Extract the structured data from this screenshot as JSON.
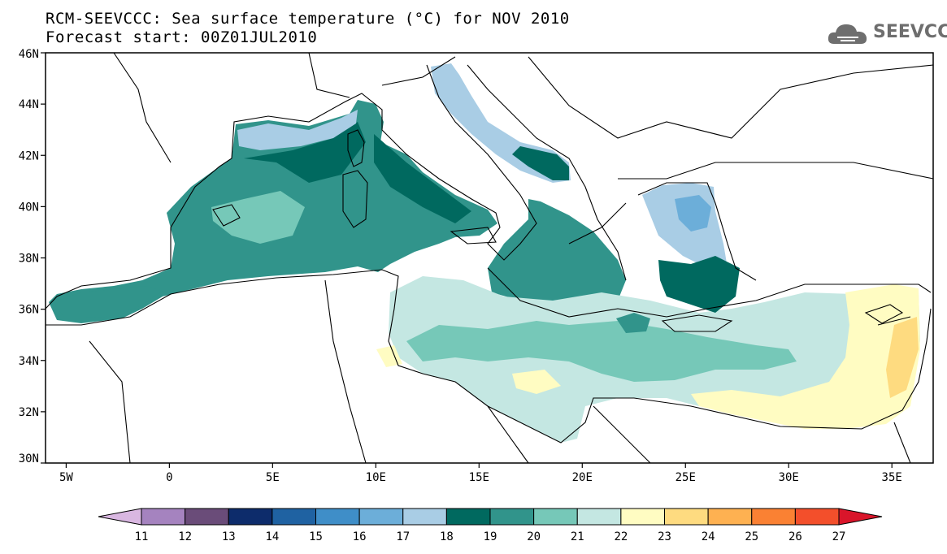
{
  "header": {
    "title_line1": "RCM-SEEVCCC: Sea surface temperature (°C) for NOV 2010",
    "title_line2": "Forecast start: 00Z01JUL2010",
    "logo_text": "SEEVCCC"
  },
  "map": {
    "region": "Mediterranean Sea",
    "lon_range": [
      -6,
      37
    ],
    "lat_range": [
      30,
      46
    ],
    "lon_ticks": [
      {
        "value": -5,
        "label": "5W"
      },
      {
        "value": 0,
        "label": "0"
      },
      {
        "value": 5,
        "label": "5E"
      },
      {
        "value": 10,
        "label": "10E"
      },
      {
        "value": 15,
        "label": "15E"
      },
      {
        "value": 20,
        "label": "20E"
      },
      {
        "value": 25,
        "label": "25E"
      },
      {
        "value": 30,
        "label": "30E"
      },
      {
        "value": 35,
        "label": "35E"
      }
    ],
    "lat_ticks": [
      {
        "value": 46,
        "label": "46N"
      },
      {
        "value": 44,
        "label": "44N"
      },
      {
        "value": 42,
        "label": "42N"
      },
      {
        "value": 40,
        "label": "40N"
      },
      {
        "value": 38,
        "label": "38N"
      },
      {
        "value": 36,
        "label": "36N"
      },
      {
        "value": 34,
        "label": "34N"
      },
      {
        "value": 32,
        "label": "32N"
      },
      {
        "value": 30,
        "label": "30N"
      }
    ]
  },
  "colorbar": {
    "labels": [
      "11",
      "12",
      "13",
      "14",
      "15",
      "16",
      "17",
      "18",
      "19",
      "20",
      "21",
      "22",
      "23",
      "24",
      "25",
      "26",
      "27"
    ],
    "colors": [
      "#d9b7e1",
      "#a583bf",
      "#6a4c79",
      "#0d2c6b",
      "#1f62a2",
      "#3f8ec8",
      "#6caed9",
      "#a9cde5",
      "#00695f",
      "#31948b",
      "#76c8b8",
      "#c4e7e2",
      "#fffcc2",
      "#fedb80",
      "#feb151",
      "#fa8133",
      "#f34f2b",
      "#d9152a"
    ]
  }
}
